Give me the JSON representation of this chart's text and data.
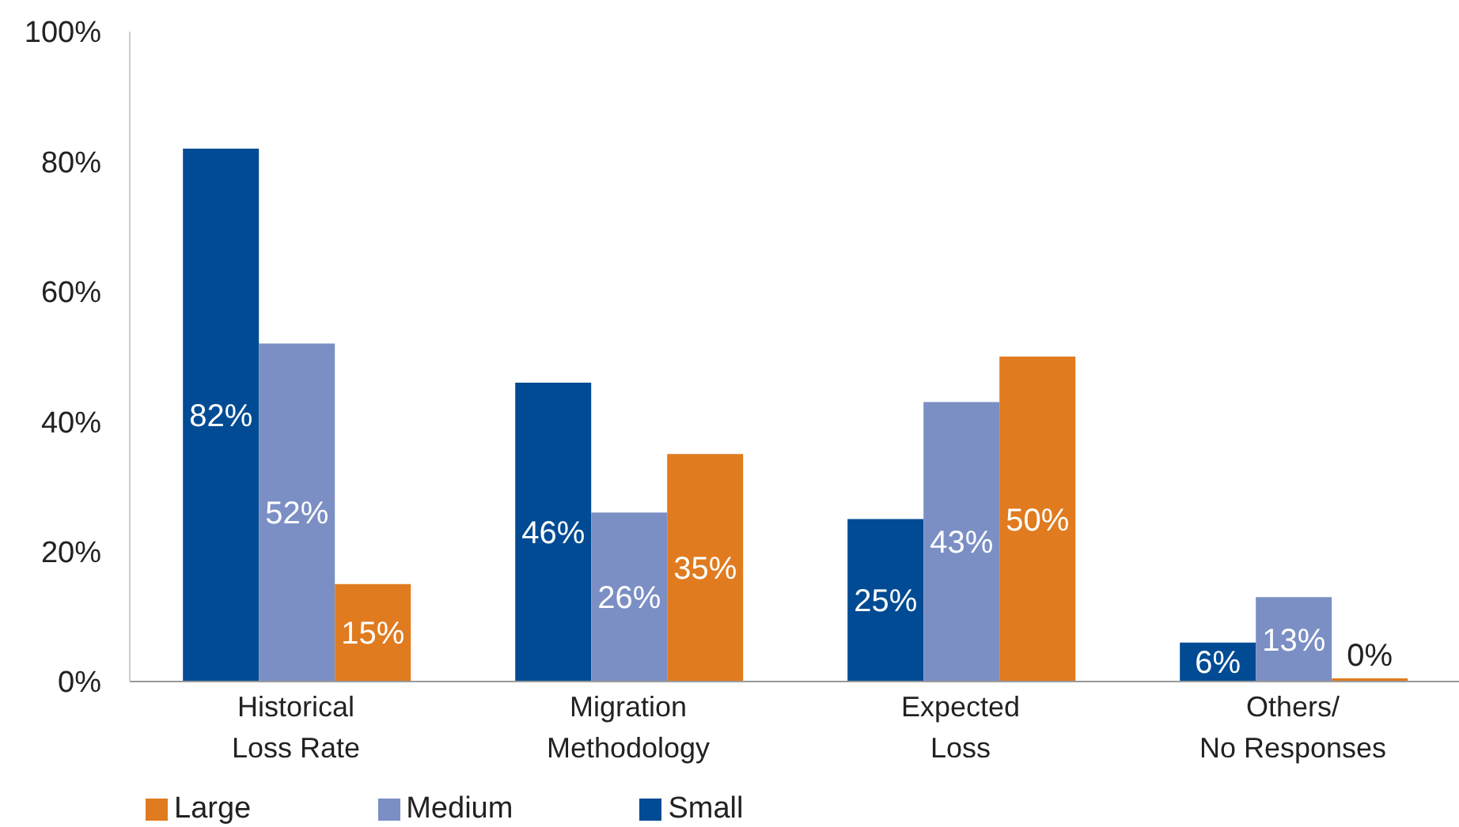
{
  "chart_data": {
    "type": "bar",
    "categories": [
      "Historical\nLoss Rate",
      "Migration\nMethodology",
      "Expected\nLoss",
      "Others/\nNo Responses"
    ],
    "series": [
      {
        "name": "Small",
        "color": "#004b93",
        "values": [
          82,
          46,
          25,
          6
        ],
        "value_labels": [
          "82%",
          "46%",
          "25%",
          "6%"
        ]
      },
      {
        "name": "Medium",
        "color": "#7b8fc4",
        "values": [
          52,
          26,
          43,
          13
        ],
        "value_labels": [
          "52%",
          "26%",
          "43%",
          "13%"
        ]
      },
      {
        "name": "Large",
        "color": "#e07b1f",
        "values": [
          15,
          35,
          50,
          0
        ],
        "value_labels": [
          "15%",
          "35%",
          "50%",
          "0%"
        ]
      }
    ],
    "ylim": [
      0,
      100
    ],
    "yticks": [
      {
        "value": 0,
        "label": "0%"
      },
      {
        "value": 20,
        "label": "20%"
      },
      {
        "value": 40,
        "label": "40%"
      },
      {
        "value": 60,
        "label": "60%"
      },
      {
        "value": 80,
        "label": "80%"
      },
      {
        "value": 100,
        "label": "100%"
      }
    ],
    "grid": false,
    "legend": "bottom left"
  }
}
